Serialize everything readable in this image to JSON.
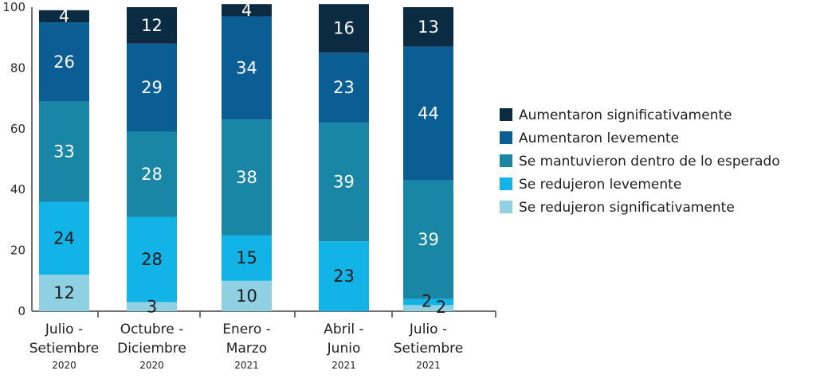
{
  "chart_data": {
    "type": "stacked-bar",
    "ylim": [
      0,
      100
    ],
    "yticks": [
      0,
      20,
      40,
      60,
      80,
      100
    ],
    "legend_position": "right",
    "categories": [
      {
        "line1": "Julio -",
        "line2": "Setiembre",
        "year": "2020"
      },
      {
        "line1": "Octubre -",
        "line2": "Diciembre",
        "year": "2020"
      },
      {
        "line1": "Enero -",
        "line2": "Marzo",
        "year": "2021"
      },
      {
        "line1": "Abril -",
        "line2": "Junio",
        "year": "2021"
      },
      {
        "line1": "Julio -",
        "line2": "Setiembre",
        "year": "2021"
      }
    ],
    "series": [
      {
        "name": "Se redujeron significativamente",
        "color": "#8fd0e3",
        "label_color": "#1a1a1a",
        "values": [
          12,
          3,
          10,
          0,
          2
        ]
      },
      {
        "name": "Se redujeron levemente",
        "color": "#12b3e6",
        "label_color": "#1a1a1a",
        "values": [
          24,
          28,
          15,
          23,
          2
        ]
      },
      {
        "name": "Se mantuvieron dentro de lo esperado",
        "color": "#1a86a6",
        "label_color": "#ffffff",
        "values": [
          33,
          28,
          38,
          39,
          39
        ]
      },
      {
        "name": "Aumentaron levemente",
        "color": "#0b5e94",
        "label_color": "#ffffff",
        "values": [
          26,
          29,
          34,
          23,
          44
        ]
      },
      {
        "name": "Aumentaron significativamente",
        "color": "#0b2b43",
        "label_color": "#ffffff",
        "values": [
          4,
          12,
          4,
          16,
          13
        ]
      }
    ]
  }
}
